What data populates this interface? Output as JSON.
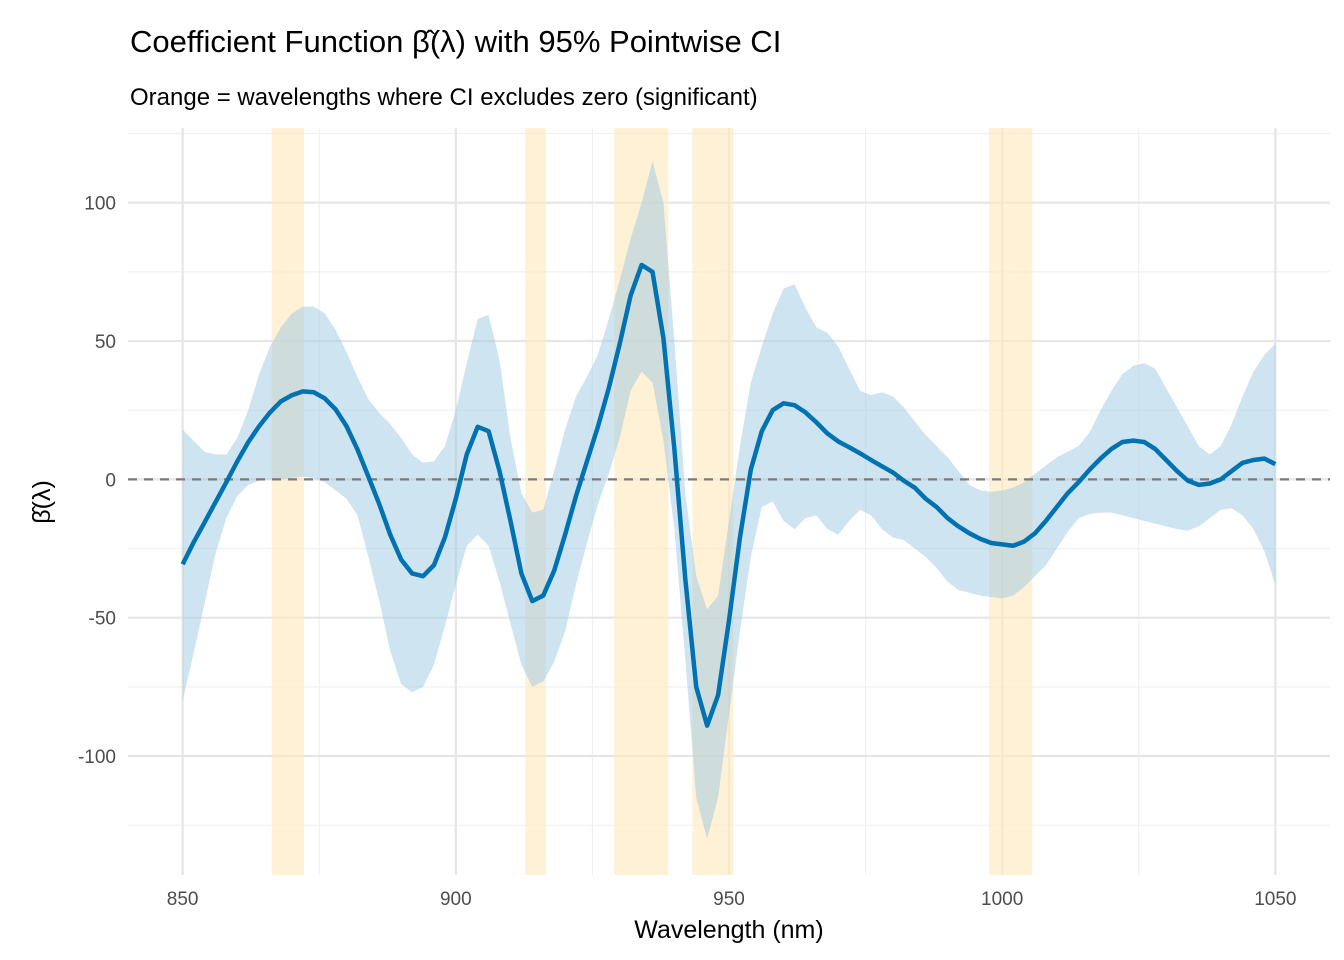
{
  "chart_data": {
    "type": "line",
    "title": "Coefficient Function β̂(λ) with 95% Pointwise CI",
    "subtitle": "Orange = wavelengths where CI excludes zero (significant)",
    "xlabel": "Wavelength (nm)",
    "ylabel": "β̂(λ)",
    "xlim": [
      840,
      1060
    ],
    "ylim": [
      -143,
      127
    ],
    "xticks": [
      850,
      900,
      950,
      1000,
      1050
    ],
    "xticks_minor": [
      875,
      925,
      975,
      1025
    ],
    "yticks": [
      -100,
      -50,
      0,
      50,
      100
    ],
    "yticks_minor": [
      -125,
      -75,
      -25,
      25,
      75,
      125
    ],
    "grid": true,
    "reference_line": 0,
    "colors": {
      "line": "#0072B2",
      "ribbon": "#9ECAE1",
      "significant": "#FFE9BF",
      "reference": "#7a7a7a"
    },
    "significant_regions": [
      [
        866.3,
        872.2
      ],
      [
        912.7,
        916.5
      ],
      [
        929,
        938.9
      ],
      [
        943.3,
        950.8
      ],
      [
        997.6,
        1005.5
      ]
    ],
    "x": [
      850,
      852,
      854,
      856,
      858,
      860,
      862,
      864,
      866,
      868,
      870,
      872,
      874,
      876,
      878,
      880,
      882,
      884,
      886,
      888,
      890,
      892,
      894,
      896,
      898,
      900,
      902,
      904,
      906,
      908,
      910,
      912,
      914,
      916,
      918,
      920,
      922,
      924,
      926,
      928,
      930,
      932,
      934,
      936,
      938,
      940,
      942,
      944,
      946,
      948,
      950,
      952,
      954,
      956,
      958,
      960,
      962,
      964,
      966,
      968,
      970,
      972,
      974,
      976,
      978,
      980,
      982,
      984,
      986,
      988,
      990,
      992,
      994,
      996,
      998,
      1000,
      1002,
      1004,
      1006,
      1008,
      1010,
      1012,
      1014,
      1016,
      1018,
      1020,
      1022,
      1024,
      1026,
      1028,
      1030,
      1032,
      1034,
      1036,
      1038,
      1040,
      1042,
      1044,
      1046,
      1048,
      1050
    ],
    "series": [
      {
        "name": "estimate",
        "values": [
          -30.7,
          -22.8,
          -15.6,
          -8.3,
          -1,
          6.5,
          13.4,
          19.2,
          24.2,
          28.2,
          30.4,
          31.8,
          31.5,
          29.3,
          25.3,
          19.2,
          10.8,
          1,
          -9,
          -20,
          -29,
          -34,
          -35,
          -31,
          -21,
          -7,
          9,
          19,
          17.4,
          3,
          -15,
          -34,
          -44,
          -42,
          -33,
          -20,
          -6,
          6.5,
          19,
          33,
          49,
          66.5,
          77.5,
          75,
          51,
          11,
          -36,
          -75,
          -89,
          -78,
          -51,
          -21,
          3.6,
          17.4,
          25,
          27.5,
          26.8,
          24.2,
          20.6,
          16.6,
          13.7,
          11.6,
          9.4,
          7,
          4.7,
          2.5,
          -0.5,
          -3,
          -7,
          -10,
          -14,
          -17,
          -19.5,
          -21.5,
          -23,
          -23.5,
          -24,
          -22.5,
          -19.5,
          -15,
          -10,
          -5,
          -1,
          3.5,
          7.5,
          11,
          13.5,
          14,
          13.5,
          11,
          7,
          3,
          -0.5,
          -2,
          -1.5,
          0,
          3,
          6,
          7,
          7.5,
          5.5
        ]
      },
      {
        "name": "upper",
        "values": [
          18,
          14,
          10,
          9,
          9,
          15,
          25,
          38,
          48,
          55,
          60,
          62.5,
          62.5,
          60,
          54,
          46,
          37,
          29,
          24,
          20,
          15,
          9,
          6,
          6.5,
          12,
          25,
          42,
          58,
          59.5,
          43,
          15,
          -5,
          -12,
          -11,
          3,
          18,
          30,
          37,
          45,
          58,
          72,
          87,
          100,
          115,
          100,
          50,
          -5,
          -35,
          -47,
          -42,
          -15,
          12,
          35,
          48,
          60,
          69,
          70.5,
          62,
          55,
          53,
          48,
          40,
          32,
          30.5,
          31.5,
          30,
          26,
          21,
          16,
          12,
          8,
          3,
          -2,
          -4,
          -4.5,
          -4,
          -3,
          -1,
          2,
          5,
          8,
          10,
          12,
          17,
          25,
          32,
          38,
          41,
          42,
          40,
          33,
          26,
          19,
          12,
          9,
          12,
          20,
          30,
          39,
          45,
          49
        ]
      },
      {
        "name": "lower",
        "values": [
          -80,
          -63,
          -45,
          -27,
          -14,
          -6,
          -2,
          -0.5,
          0,
          0,
          0.5,
          1,
          0.5,
          -1,
          -4,
          -7,
          -13,
          -28,
          -44,
          -62,
          -74,
          -77,
          -75,
          -67,
          -53,
          -38,
          -24,
          -20,
          -24,
          -37,
          -52,
          -67,
          -75,
          -73,
          -66,
          -55,
          -38,
          -23,
          -9,
          2,
          15,
          32,
          39,
          35,
          14,
          -18,
          -65,
          -115,
          -130,
          -115,
          -85,
          -55,
          -28,
          -10,
          -8,
          -15,
          -18,
          -14,
          -13,
          -18,
          -20,
          -15,
          -11,
          -13,
          -18,
          -21,
          -22,
          -25,
          -28,
          -32,
          -37,
          -40,
          -41,
          -42,
          -42.5,
          -43,
          -42,
          -39,
          -35,
          -31,
          -25,
          -19,
          -14,
          -12.5,
          -12,
          -12,
          -13,
          -14,
          -15,
          -16,
          -17,
          -18,
          -18.5,
          -17,
          -14,
          -11,
          -10.5,
          -13,
          -18,
          -26,
          -38
        ]
      }
    ]
  }
}
